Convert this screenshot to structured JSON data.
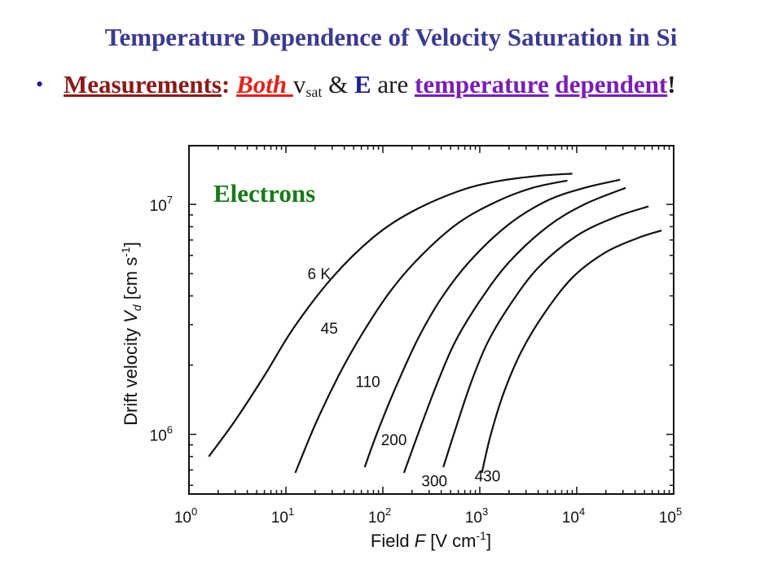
{
  "slide": {
    "title": "Temperature Dependence of Velocity Saturation in Si",
    "bullet": {
      "dot": "•",
      "measurements": "Measurements",
      "colon": ":",
      "both": "Both ",
      "v": "v",
      "v_sub": "sat",
      "amp": " & ",
      "e": "E",
      "are": " are ",
      "temperature": "temperature",
      "dependent": "dependent",
      "exclaim": "!"
    }
  },
  "colors": {
    "title": "#3b3b8f",
    "measurements": "#8b1a1a",
    "both": "#e0241c",
    "temperature": "#7a1fb5",
    "annotation": "#1a7a1a"
  },
  "chart_data": {
    "type": "line",
    "x_scale": "log",
    "y_scale": "log",
    "xlim": [
      1,
      100000
    ],
    "ylim": [
      550000,
      18000000
    ],
    "xlabel": {
      "prefix": "Field ",
      "var": "F",
      "units": " [V cm",
      "sup": "-1",
      "close": "]"
    },
    "ylabel": {
      "prefix": "Drift velocity ",
      "var": "V",
      "sub": "d",
      "units": " [cm s",
      "sup": "-1",
      "close": "]"
    },
    "x_ticks": [
      {
        "value": 1,
        "base": "10",
        "exp": "0"
      },
      {
        "value": 10,
        "base": "10",
        "exp": "1"
      },
      {
        "value": 100,
        "base": "10",
        "exp": "2"
      },
      {
        "value": 1000,
        "base": "10",
        "exp": "3"
      },
      {
        "value": 10000,
        "base": "10",
        "exp": "4"
      },
      {
        "value": 100000,
        "base": "10",
        "exp": "5"
      }
    ],
    "y_ticks": [
      {
        "value": 1000000,
        "base": "10",
        "exp": "6"
      },
      {
        "value": 10000000,
        "base": "10",
        "exp": "7"
      }
    ],
    "annotation": "Electrons",
    "series": [
      {
        "name": "6 K",
        "label_x": 22,
        "label_y": 5000000,
        "x": [
          1.6,
          3,
          6,
          12,
          30,
          80,
          200,
          600,
          1500,
          4000,
          9000
        ],
        "y": [
          800000,
          1150000,
          1800000,
          2900000,
          4800000,
          7200000,
          9300000,
          11400000,
          12600000,
          13300000,
          13600000
        ]
      },
      {
        "name": "45",
        "label_x": 28,
        "label_y": 2900000,
        "x": [
          12.5,
          20,
          35,
          60,
          120,
          250,
          600,
          1500,
          3500,
          8000
        ],
        "y": [
          680000,
          1100000,
          1800000,
          2700000,
          4200000,
          6000000,
          8300000,
          10300000,
          11800000,
          12700000
        ]
      },
      {
        "name": "110",
        "label_x": 70,
        "label_y": 1700000,
        "x": [
          65,
          90,
          140,
          230,
          400,
          800,
          2000,
          5000,
          12000,
          28000
        ],
        "y": [
          720000,
          1050000,
          1650000,
          2600000,
          3900000,
          5700000,
          8200000,
          10400000,
          11800000,
          12800000
        ]
      },
      {
        "name": "200",
        "label_x": 130,
        "label_y": 950000,
        "x": [
          165,
          240,
          350,
          550,
          1000,
          2000,
          5000,
          12000,
          32000
        ],
        "y": [
          680000,
          1050000,
          1600000,
          2500000,
          3800000,
          5600000,
          8000000,
          10000000,
          11800000
        ]
      },
      {
        "name": "300",
        "label_x": 340,
        "label_y": 630000,
        "x": [
          420,
          560,
          800,
          1200,
          2000,
          4000,
          10000,
          25000,
          55000
        ],
        "y": [
          720000,
          1050000,
          1650000,
          2500000,
          3600000,
          5300000,
          7300000,
          8800000,
          9800000
        ]
      },
      {
        "name": "430",
        "label_x": 1200,
        "label_y": 660000,
        "x": [
          1050,
          1300,
          1800,
          2700,
          4500,
          9000,
          20000,
          45000,
          75000
        ],
        "y": [
          680000,
          1000000,
          1550000,
          2300000,
          3300000,
          4800000,
          6200000,
          7200000,
          7700000
        ]
      }
    ]
  }
}
